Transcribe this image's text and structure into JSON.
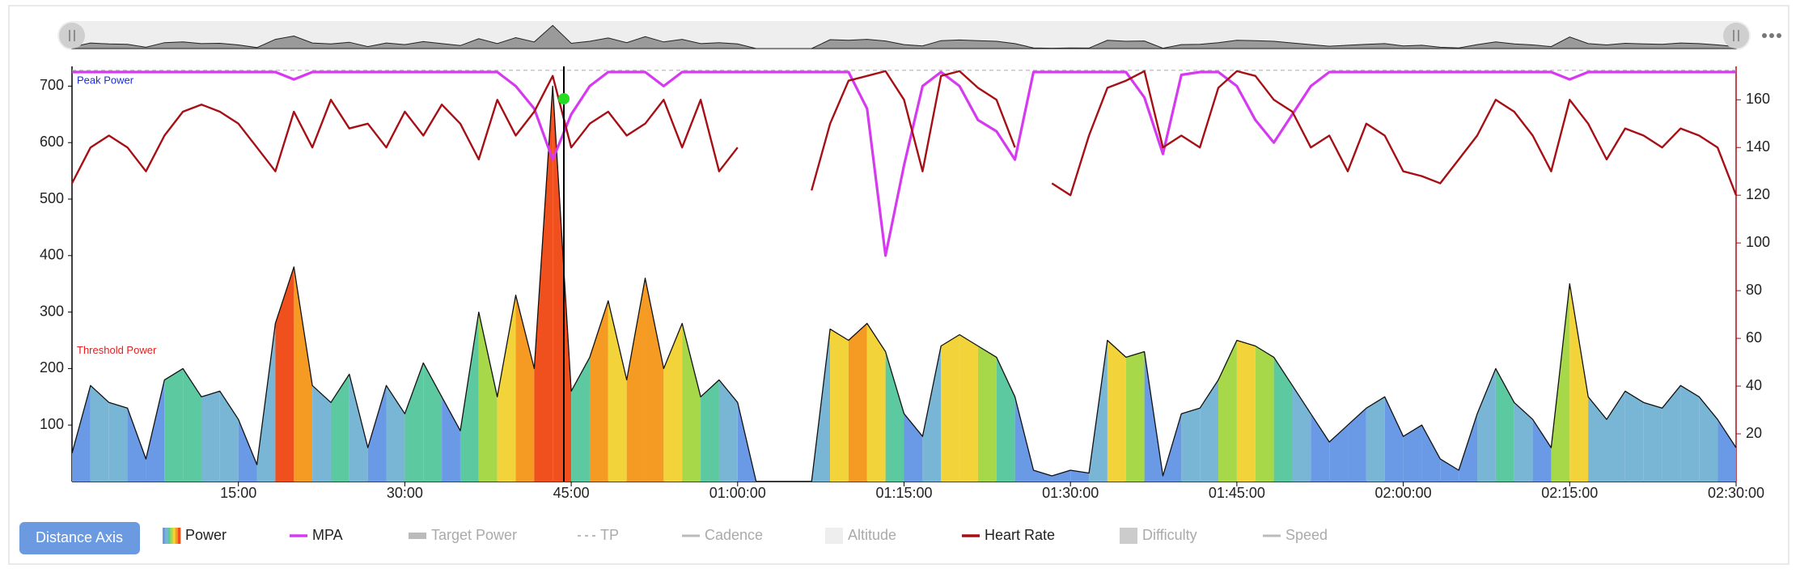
{
  "controls": {
    "distance_axis": "Distance Axis"
  },
  "chart_data": {
    "type": "workout",
    "xlim": [
      0,
      9000
    ],
    "xticks": [
      {
        "value": 900,
        "label": "15:00"
      },
      {
        "value": 1800,
        "label": "30:00"
      },
      {
        "value": 2700,
        "label": "45:00"
      },
      {
        "value": 3600,
        "label": "01:00:00"
      },
      {
        "value": 4500,
        "label": "01:15:00"
      },
      {
        "value": 5400,
        "label": "01:30:00"
      },
      {
        "value": 6300,
        "label": "01:45:00"
      },
      {
        "value": 7200,
        "label": "02:00:00"
      },
      {
        "value": 8100,
        "label": "02:15:00"
      },
      {
        "value": 9000,
        "label": "02:30:00"
      }
    ],
    "ylim": [
      0,
      735
    ],
    "yticks": [
      100,
      200,
      300,
      400,
      500,
      600,
      700
    ],
    "y2lim": [
      0,
      174
    ],
    "y2ticks": [
      20,
      40,
      60,
      80,
      100,
      120,
      140,
      160
    ],
    "peak_power": {
      "label": "Peak Power",
      "value": 728
    },
    "threshold_power": {
      "label": "Threshold Power",
      "value": 220
    },
    "x": [
      0,
      100,
      200,
      300,
      400,
      500,
      600,
      700,
      800,
      900,
      1000,
      1100,
      1200,
      1300,
      1400,
      1500,
      1600,
      1700,
      1800,
      1900,
      2000,
      2100,
      2200,
      2300,
      2400,
      2500,
      2600,
      2700,
      2800,
      2900,
      3000,
      3100,
      3200,
      3300,
      3400,
      3500,
      3600,
      3700,
      3800,
      3900,
      4000,
      4100,
      4200,
      4300,
      4400,
      4500,
      4600,
      4700,
      4800,
      4900,
      5000,
      5100,
      5200,
      5300,
      5400,
      5500,
      5600,
      5700,
      5800,
      5900,
      6000,
      6100,
      6200,
      6300,
      6400,
      6500,
      6600,
      6700,
      6800,
      6900,
      7000,
      7100,
      7200,
      7300,
      7400,
      7500,
      7600,
      7700,
      7800,
      7900,
      8000,
      8100,
      8200,
      8300,
      8400,
      8500,
      8600,
      8700,
      8800,
      8900,
      9000
    ],
    "series": [
      {
        "name": "Power",
        "style": "zones",
        "colors": [
          "#6a9ae6",
          "#79b6d6",
          "#5cc9a0",
          "#a6d84a",
          "#f2d43a",
          "#f59a23",
          "#f0501e"
        ],
        "values": [
          50,
          170,
          140,
          130,
          40,
          180,
          200,
          150,
          160,
          110,
          30,
          280,
          380,
          170,
          140,
          190,
          60,
          170,
          120,
          210,
          150,
          90,
          300,
          150,
          330,
          200,
          700,
          160,
          220,
          320,
          180,
          360,
          200,
          280,
          150,
          180,
          140,
          0,
          0,
          0,
          0,
          270,
          250,
          280,
          230,
          120,
          80,
          240,
          260,
          240,
          220,
          150,
          20,
          10,
          20,
          15,
          250,
          220,
          230,
          10,
          120,
          130,
          180,
          250,
          240,
          220,
          170,
          120,
          70,
          100,
          130,
          150,
          80,
          100,
          40,
          20,
          120,
          200,
          140,
          110,
          60,
          350,
          150,
          110,
          160,
          140,
          130,
          170,
          150,
          110,
          60
        ]
      },
      {
        "name": "MPA",
        "color": "#d63af0",
        "values": [
          725,
          725,
          725,
          725,
          725,
          725,
          725,
          725,
          725,
          725,
          725,
          725,
          712,
          725,
          725,
          725,
          725,
          725,
          725,
          725,
          725,
          725,
          725,
          725,
          700,
          660,
          570,
          650,
          700,
          725,
          725,
          725,
          700,
          725,
          725,
          725,
          725,
          725,
          725,
          725,
          725,
          725,
          725,
          660,
          400,
          560,
          700,
          725,
          700,
          640,
          620,
          570,
          725,
          725,
          725,
          725,
          725,
          725,
          680,
          580,
          720,
          725,
          725,
          700,
          640,
          600,
          650,
          700,
          725,
          725,
          725,
          725,
          725,
          725,
          725,
          725,
          725,
          725,
          725,
          725,
          725,
          712,
          725,
          725,
          725,
          725,
          725,
          725,
          725,
          725,
          725
        ]
      },
      {
        "name": "Target Power",
        "color": "#bbbbbb",
        "style": "bar",
        "visible": false
      },
      {
        "name": "TP",
        "color": "#bbbbbb",
        "style": "dash",
        "visible": false
      },
      {
        "name": "Cadence",
        "color": "#bbbbbb",
        "style": "line",
        "visible": false
      },
      {
        "name": "Altitude",
        "color": "#eeeeee",
        "style": "box",
        "visible": false
      },
      {
        "name": "Heart Rate",
        "color": "#a50f15",
        "axis": "y2",
        "values": [
          125,
          140,
          145,
          140,
          130,
          145,
          155,
          158,
          155,
          150,
          140,
          130,
          155,
          140,
          160,
          148,
          150,
          140,
          155,
          145,
          158,
          150,
          135,
          160,
          145,
          155,
          170,
          140,
          150,
          155,
          145,
          150,
          160,
          140,
          160,
          130,
          140,
          null,
          null,
          null,
          122,
          150,
          168,
          170,
          172,
          160,
          130,
          170,
          172,
          165,
          160,
          140,
          null,
          125,
          120,
          145,
          165,
          168,
          172,
          140,
          145,
          140,
          165,
          172,
          170,
          160,
          155,
          140,
          145,
          130,
          150,
          145,
          130,
          128,
          125,
          135,
          145,
          160,
          155,
          145,
          130,
          160,
          150,
          135,
          148,
          145,
          140,
          148,
          145,
          140,
          120
        ]
      },
      {
        "name": "Difficulty",
        "color": "#cccccc",
        "style": "box",
        "visible": false
      },
      {
        "name": "Speed",
        "color": "#bbbbbb",
        "style": "line",
        "visible": false
      }
    ]
  }
}
